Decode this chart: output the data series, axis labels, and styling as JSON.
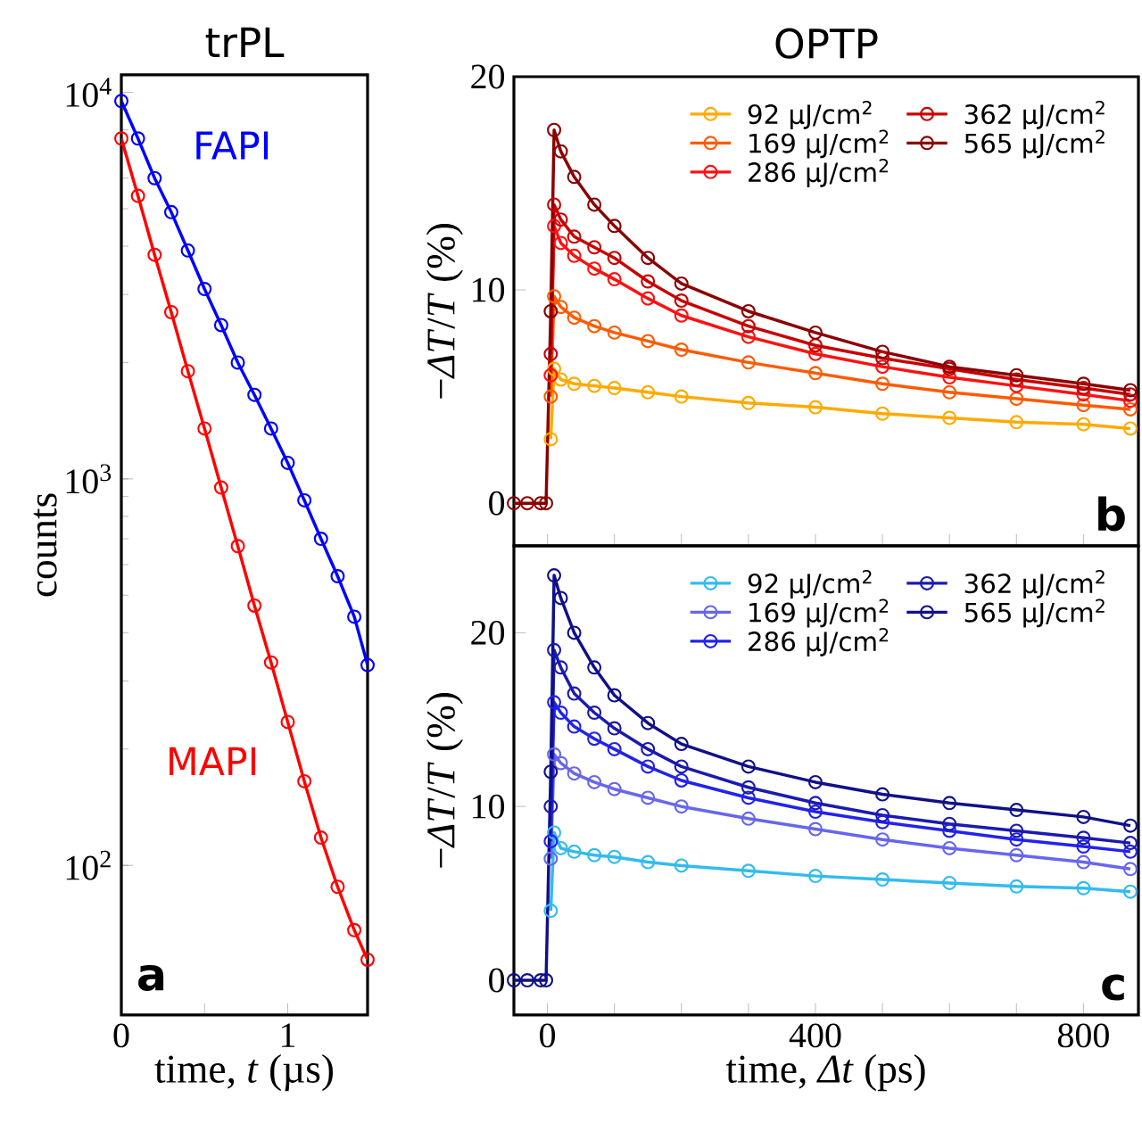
{
  "chart_data": [
    {
      "type": "line",
      "title": "trPL",
      "xlabel": "time, *t* (µs)",
      "ylabel": "counts",
      "log": "y",
      "marker": "circle",
      "line_style": "solid",
      "legend": false,
      "x": [
        0,
        0.1,
        0.2,
        0.3,
        0.4,
        0.5,
        0.6,
        0.7,
        0.8,
        0.9,
        1.0,
        1.1,
        1.2,
        1.3,
        1.4,
        1.48
      ],
      "series": [
        {
          "name": "FAPI",
          "color": "#0000ff",
          "values": [
            9500,
            7600,
            6000,
            4900,
            3900,
            3100,
            2500,
            2000,
            1650,
            1350,
            1100,
            880,
            700,
            560,
            440,
            330
          ]
        },
        {
          "name": "MAPI",
          "color": "#ff0000",
          "values": [
            7600,
            5400,
            3800,
            2700,
            1900,
            1350,
            950,
            670,
            470,
            335,
            235,
            165,
            118,
            88,
            68,
            57
          ]
        }
      ],
      "xlim": [
        0,
        1.48
      ],
      "ylim": [
        41,
        11100
      ],
      "xticks": [
        0,
        {
          "value": 0.5,
          "label": null
        },
        1
      ],
      "yticks": [
        {
          "value": 100,
          "label": "10$^{2}$"
        },
        {
          "value": 1000,
          "label": "10$^{3}$"
        },
        {
          "value": 10000,
          "label": "10$^{4}$"
        }
      ],
      "annotations": [
        "a"
      ]
    },
    {
      "type": "line",
      "title": "OPTP",
      "ylabel": "−*ΔT*/*T* (%)",
      "marker": "circle",
      "line_style": "solid",
      "legend": "top right",
      "tick_labels": "y",
      "x": [
        -50,
        -30,
        -10,
        -2,
        5,
        10,
        20,
        40,
        70,
        100,
        150,
        200,
        300,
        400,
        500,
        600,
        700,
        800,
        870
      ],
      "series": [
        {
          "name": "92 µJ/cm$^{2}$",
          "color": "#ffaa00",
          "values": [
            null,
            null,
            null,
            null,
            3,
            6.3,
            5.8,
            5.6,
            5.5,
            5.4,
            5.2,
            5.0,
            4.7,
            4.5,
            4.2,
            4.0,
            3.8,
            3.7,
            3.5
          ]
        },
        {
          "name": "169 µJ/cm$^{2}$",
          "color": "#ff5a00",
          "values": [
            null,
            null,
            null,
            null,
            5,
            9.7,
            9.2,
            8.7,
            8.3,
            8.0,
            7.6,
            7.2,
            6.6,
            6.1,
            5.6,
            5.2,
            4.9,
            4.6,
            4.4
          ]
        },
        {
          "name": "286 µJ/cm$^{2}$",
          "color": "#ff1010",
          "values": [
            null,
            null,
            null,
            null,
            6,
            13.0,
            12.2,
            11.6,
            11.0,
            10.5,
            9.6,
            8.8,
            7.8,
            7.0,
            6.4,
            5.9,
            5.5,
            5.1,
            4.8
          ]
        },
        {
          "name": "362 µJ/cm$^{2}$",
          "color": "#c80000",
          "values": [
            null,
            null,
            null,
            null,
            7,
            14.0,
            13.3,
            12.5,
            12.0,
            11.5,
            10.4,
            9.5,
            8.3,
            7.4,
            6.8,
            6.3,
            5.8,
            5.4,
            5.1
          ]
        },
        {
          "name": "565 µJ/cm$^{2}$",
          "color": "#8b0000",
          "values": [
            0,
            0,
            0,
            0,
            9,
            17.5,
            16.5,
            15.3,
            14.0,
            13.0,
            11.5,
            10.3,
            9.0,
            8.0,
            7.1,
            6.4,
            6.0,
            5.6,
            5.3
          ]
        }
      ],
      "xlim": [
        -50,
        882
      ],
      "ylim": [
        -2,
        20
      ],
      "xticks": [
        0,
        {
          "value": 100,
          "label": null
        },
        {
          "value": 200,
          "label": null
        },
        {
          "value": 300,
          "label": null
        },
        400,
        {
          "value": 500,
          "label": null
        },
        {
          "value": 600,
          "label": null
        },
        {
          "value": 700,
          "label": null
        },
        800
      ],
      "yticks": [
        0,
        10,
        20
      ],
      "annotations": [
        "b"
      ]
    },
    {
      "type": "line",
      "xlabel": "time, *Δt* (ps)",
      "ylabel": "−*ΔT*/*T* (%)",
      "marker": "circle",
      "line_style": "solid",
      "legend": "top right",
      "x": [
        -50,
        -30,
        -10,
        -2,
        5,
        10,
        20,
        40,
        70,
        100,
        150,
        200,
        300,
        400,
        500,
        600,
        700,
        800,
        870
      ],
      "series": [
        {
          "name": "92 µJ/cm$^{2}$",
          "color": "#33bbee",
          "values": [
            null,
            null,
            null,
            null,
            4,
            8.5,
            7.6,
            7.4,
            7.2,
            7.1,
            6.8,
            6.6,
            6.3,
            6.0,
            5.8,
            5.6,
            5.4,
            5.3,
            5.1
          ]
        },
        {
          "name": "169 µJ/cm$^{2}$",
          "color": "#6666ee",
          "values": [
            null,
            null,
            null,
            null,
            7,
            13.0,
            12.5,
            11.9,
            11.4,
            11.0,
            10.5,
            10.0,
            9.3,
            8.7,
            8.1,
            7.6,
            7.2,
            6.8,
            6.4
          ]
        },
        {
          "name": "286 µJ/cm$^{2}$",
          "color": "#2222ee",
          "values": [
            null,
            null,
            null,
            null,
            8,
            16.0,
            15.4,
            14.6,
            13.9,
            13.3,
            12.3,
            11.5,
            10.5,
            9.7,
            9.1,
            8.6,
            8.1,
            7.7,
            7.4
          ]
        },
        {
          "name": "362 µJ/cm$^{2}$",
          "color": "#1a1ab0",
          "values": [
            null,
            null,
            null,
            null,
            10,
            19.0,
            18.0,
            16.5,
            15.4,
            14.5,
            13.3,
            12.3,
            11.1,
            10.2,
            9.5,
            9.0,
            8.6,
            8.2,
            7.9
          ]
        },
        {
          "name": "565 µJ/cm$^{2}$",
          "color": "#10108a",
          "values": [
            0,
            0,
            0,
            0,
            12,
            23.3,
            22.0,
            20.0,
            18.0,
            16.4,
            14.8,
            13.6,
            12.3,
            11.4,
            10.7,
            10.2,
            9.8,
            9.4,
            8.9
          ]
        }
      ],
      "xlim": [
        -50,
        882
      ],
      "ylim": [
        -2,
        25
      ],
      "xticks": [
        0,
        {
          "value": 100,
          "label": null
        },
        {
          "value": 200,
          "label": null
        },
        {
          "value": 300,
          "label": null
        },
        400,
        {
          "value": 500,
          "label": null
        },
        {
          "value": 600,
          "label": null
        },
        {
          "value": 700,
          "label": null
        },
        800
      ],
      "yticks": [
        0,
        10,
        20
      ],
      "annotations": [
        "c"
      ]
    }
  ]
}
